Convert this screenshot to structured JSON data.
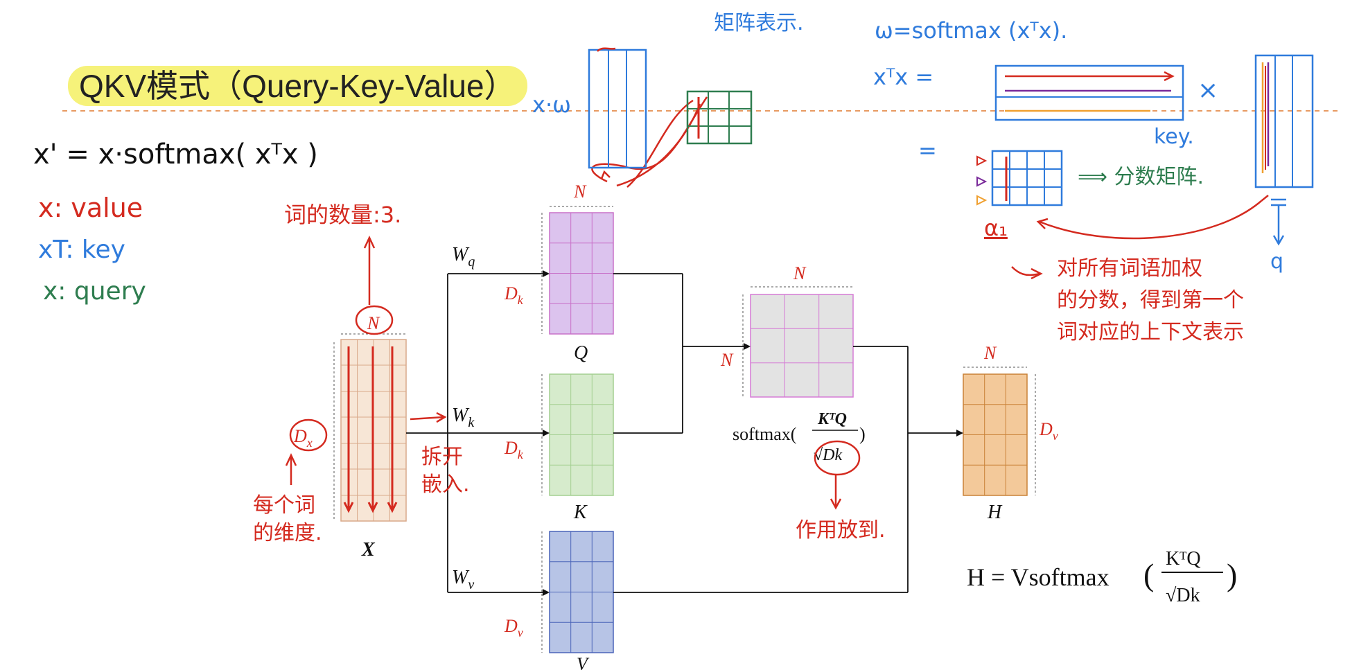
{
  "title": "QKV模式（Query-Key-Value）",
  "notes": {
    "formula_main": "x' = x·softmax( xᵀx )",
    "x_value": "x: value",
    "xT_key": "xT: key",
    "x_query": "x: query",
    "word_count": "词的数量:3.",
    "dim_per_word": "每个词\n的维度.",
    "split_open": "拆开\n嵌入.",
    "x_omega": "x·ω",
    "matrix_repr": "矩阵表示.",
    "omega_eq": "ω=softmax (xᵀx).",
    "xTx_eq": "xᵀx =",
    "equals": "=",
    "times": "×",
    "key_label": "key.",
    "q_label": "q",
    "score_matrix": "⟹ 分数矩阵.",
    "alpha": "α₁",
    "weight_note": "对所有词语加权\n的分数，得到第一个\n词对应的上下文表示",
    "scale_note": "作用放到.",
    "h_formula": "H = Vsoftmax",
    "h_frac_num": "KᵀQ",
    "h_frac_den": "√Dk"
  },
  "diagram": {
    "X": "X",
    "Q": "Q",
    "K": "K",
    "V": "V",
    "H": "H",
    "N": "N",
    "Wq": "W",
    "Wq_sub": "q",
    "Wk": "W",
    "Wk_sub": "k",
    "Wv": "W",
    "Wv_sub": "v",
    "Dk": "D",
    "Dk_sub": "k",
    "Dv": "D",
    "Dv_sub": "v",
    "Dx": "D",
    "Dx_sub": "x",
    "softmax": "softmax(",
    "softmax_num": "KᵀQ",
    "softmax_den": "√Dk",
    "softmax_close": ")"
  },
  "colors": {
    "red_ink": "#d42a1f",
    "blue_ink": "#2f7bdc",
    "green_ink": "#2e7d4f",
    "highlight": "#f6f27a",
    "Q_fill": "#dcc3ee",
    "K_fill": "#d6ebcc",
    "V_fill": "#b7c4e6",
    "H_fill": "#f3c99a",
    "X_fill": "#f7e6d6",
    "softmax_fill": "#e3e3e3"
  }
}
